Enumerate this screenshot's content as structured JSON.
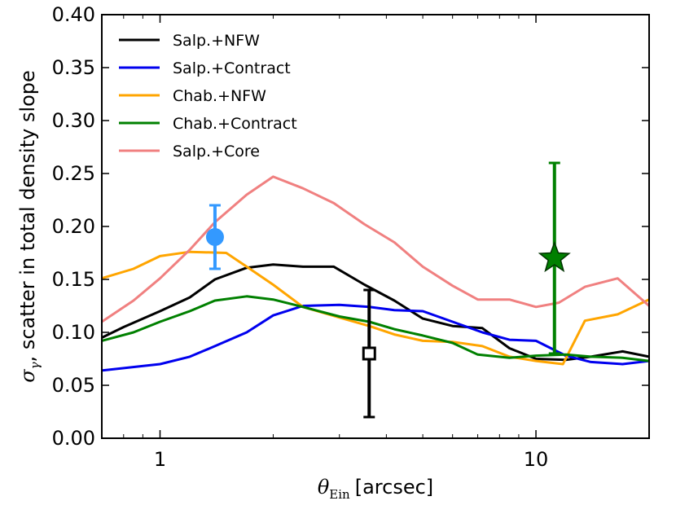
{
  "chart_data": {
    "type": "line",
    "xscale": "log",
    "xlim": [
      0.7,
      20
    ],
    "ylim": [
      0.0,
      0.4
    ],
    "xticks": [
      {
        "value": 1,
        "label": "1"
      },
      {
        "value": 10,
        "label": "10"
      }
    ],
    "yticks": [
      {
        "value": 0.0,
        "label": "0.00"
      },
      {
        "value": 0.05,
        "label": "0.05"
      },
      {
        "value": 0.1,
        "label": "0.10"
      },
      {
        "value": 0.15,
        "label": "0.15"
      },
      {
        "value": 0.2,
        "label": "0.20"
      },
      {
        "value": 0.25,
        "label": "0.25"
      },
      {
        "value": 0.3,
        "label": "0.30"
      },
      {
        "value": 0.35,
        "label": "0.35"
      },
      {
        "value": 0.4,
        "label": "0.40"
      }
    ],
    "xlabel": {
      "symbol": "θ",
      "subscript": "Ein",
      "unit": "[arcsec]"
    },
    "ylabel": {
      "symbol": "σ",
      "subscript": "γ",
      "text": ", scatter in total density slope"
    },
    "legend_position": "top-left",
    "grid": false,
    "series": [
      {
        "name": "Salp.+NFW",
        "color": "#000000",
        "x": [
          0.7,
          0.8,
          1.0,
          1.2,
          1.4,
          1.7,
          2.0,
          2.4,
          2.9,
          3.5,
          4.2,
          5.0,
          6.0,
          7.2,
          8.5,
          10.0,
          12.0,
          14.0,
          17.0,
          20.0
        ],
        "y": [
          0.095,
          0.105,
          0.12,
          0.133,
          0.15,
          0.161,
          0.164,
          0.162,
          0.162,
          0.145,
          0.13,
          0.113,
          0.106,
          0.104,
          0.085,
          0.075,
          0.074,
          0.077,
          0.082,
          0.077
        ]
      },
      {
        "name": "Salp.+Contract",
        "color": "#0000ee",
        "x": [
          0.7,
          1.0,
          1.2,
          1.4,
          1.7,
          2.0,
          2.4,
          3.0,
          3.6,
          4.2,
          5.0,
          6.0,
          7.2,
          8.5,
          10.0,
          12.0,
          14.0,
          17.0,
          20.0
        ],
        "y": [
          0.064,
          0.07,
          0.077,
          0.087,
          0.1,
          0.116,
          0.125,
          0.126,
          0.124,
          0.121,
          0.12,
          0.11,
          0.1,
          0.093,
          0.092,
          0.078,
          0.072,
          0.07,
          0.073
        ]
      },
      {
        "name": "Chab.+NFW",
        "color": "#ffa500",
        "x": [
          0.7,
          0.85,
          1.0,
          1.2,
          1.5,
          1.7,
          2.0,
          2.4,
          3.0,
          3.6,
          4.2,
          5.0,
          6.0,
          7.2,
          8.5,
          10.0,
          11.8,
          13.5,
          16.5,
          20.0
        ],
        "y": [
          0.151,
          0.16,
          0.172,
          0.176,
          0.175,
          0.162,
          0.145,
          0.124,
          0.114,
          0.106,
          0.098,
          0.092,
          0.091,
          0.087,
          0.077,
          0.073,
          0.07,
          0.111,
          0.117,
          0.131
        ]
      },
      {
        "name": "Chab.+Contract",
        "color": "#008000",
        "x": [
          0.7,
          0.85,
          1.0,
          1.2,
          1.4,
          1.7,
          2.0,
          2.4,
          3.0,
          3.6,
          4.2,
          5.0,
          6.0,
          7.0,
          8.5,
          10.0,
          12.0,
          14.0,
          17.0,
          20.0
        ],
        "y": [
          0.092,
          0.1,
          0.11,
          0.12,
          0.13,
          0.134,
          0.131,
          0.124,
          0.115,
          0.11,
          0.103,
          0.097,
          0.09,
          0.079,
          0.076,
          0.078,
          0.079,
          0.077,
          0.076,
          0.073
        ]
      },
      {
        "name": "Salp.+Core",
        "color": "#f08080",
        "x": [
          0.7,
          0.85,
          1.0,
          1.2,
          1.4,
          1.7,
          2.0,
          2.4,
          2.9,
          3.5,
          4.2,
          5.0,
          6.0,
          7.0,
          8.5,
          10.0,
          11.5,
          13.5,
          16.5,
          20.0
        ],
        "y": [
          0.11,
          0.13,
          0.151,
          0.178,
          0.204,
          0.23,
          0.247,
          0.236,
          0.222,
          0.202,
          0.185,
          0.162,
          0.144,
          0.131,
          0.131,
          0.124,
          0.128,
          0.143,
          0.151,
          0.125
        ]
      }
    ],
    "points": [
      {
        "marker": "circle",
        "color": "#3399ff",
        "x": 1.4,
        "y": 0.19,
        "yerr": [
          0.16,
          0.22
        ],
        "filled": true
      },
      {
        "marker": "square",
        "color": "#000000",
        "x": 3.6,
        "y": 0.08,
        "yerr": [
          0.02,
          0.14
        ],
        "filled": false
      },
      {
        "marker": "star",
        "color": "#008000",
        "x": 11.2,
        "y": 0.17,
        "yerr": [
          0.08,
          0.26
        ],
        "filled": true
      }
    ]
  }
}
